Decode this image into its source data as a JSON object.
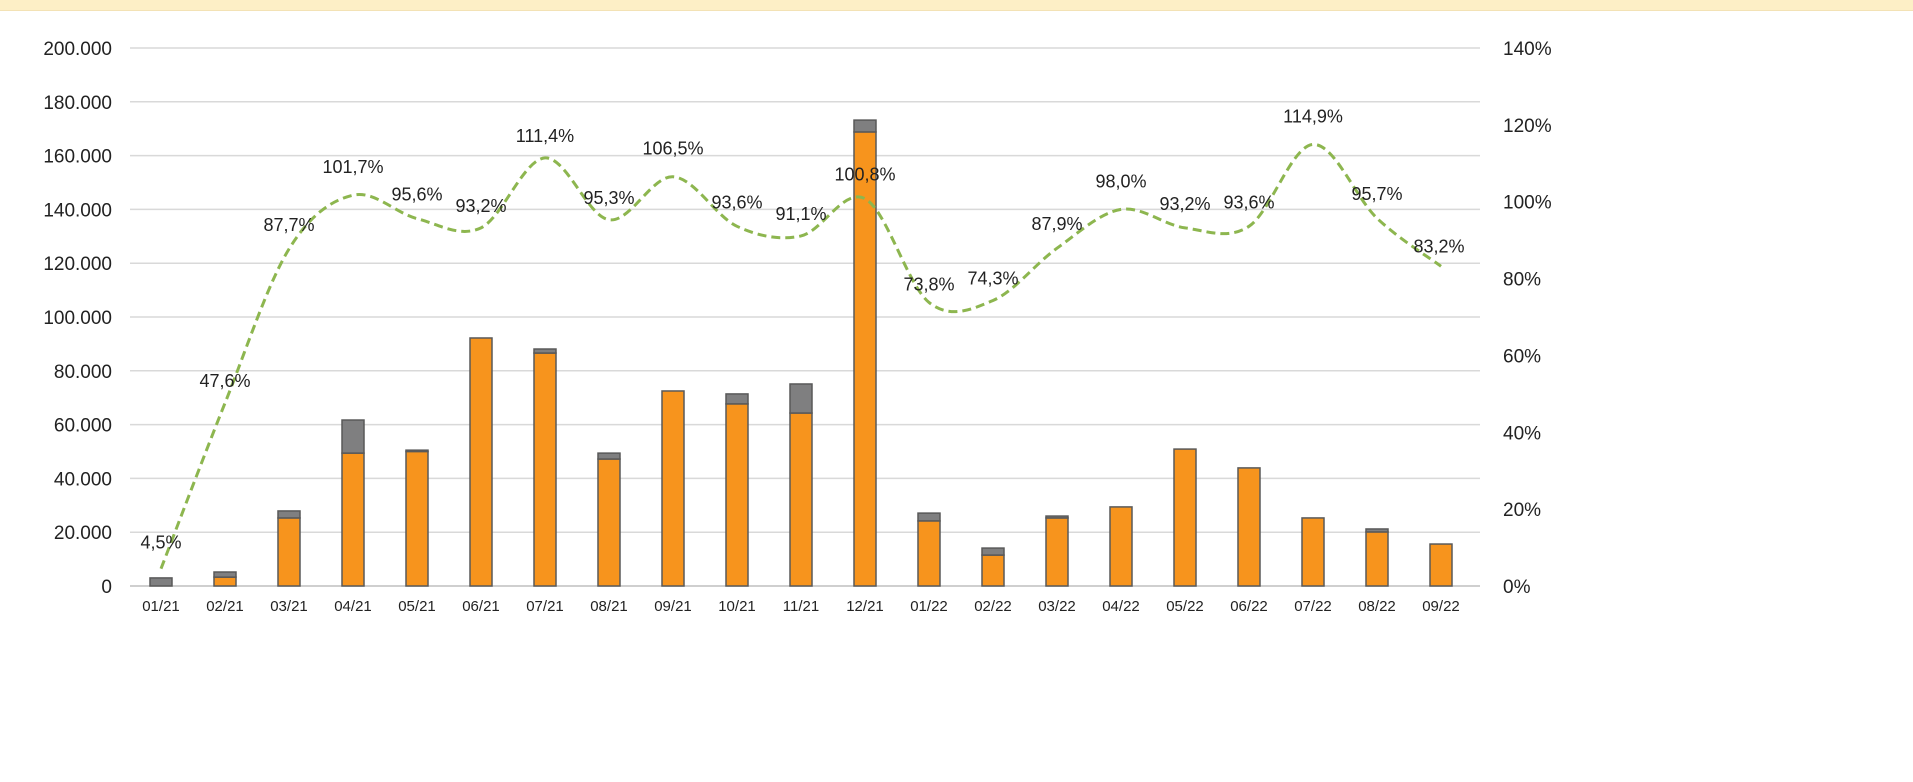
{
  "chart_data": {
    "type": "bar",
    "title": "",
    "categories": [
      "01/21",
      "02/21",
      "03/21",
      "04/21",
      "05/21",
      "06/21",
      "07/21",
      "08/21",
      "09/21",
      "10/21",
      "11/21",
      "12/21",
      "01/22",
      "02/22",
      "03/22",
      "04/22",
      "05/22",
      "06/22",
      "07/22",
      "08/22",
      "09/22"
    ],
    "series": [
      {
        "name": "orange",
        "type": "bar",
        "axis": "left",
        "color": "#f7941d",
        "values": [
          0,
          3300,
          25300,
          49400,
          50000,
          92200,
          86600,
          47200,
          72500,
          67700,
          64300,
          168800,
          24200,
          11500,
          25300,
          29400,
          50900,
          43900,
          25300,
          20100,
          15600
        ]
      },
      {
        "name": "gray",
        "type": "bar",
        "axis": "left",
        "color": "#7f7f80",
        "values": [
          3000,
          1900,
          2600,
          12300,
          500,
          0,
          1500,
          2200,
          0,
          3700,
          10800,
          4400,
          2900,
          2600,
          700,
          0,
          0,
          0,
          0,
          1100,
          0
        ]
      },
      {
        "name": "ratio",
        "type": "line",
        "axis": "right",
        "color": "#8db64f",
        "values": [
          4.5,
          47.6,
          87.7,
          101.7,
          95.6,
          93.2,
          111.4,
          95.3,
          106.5,
          93.6,
          91.1,
          100.8,
          73.8,
          74.3,
          87.9,
          98.0,
          93.2,
          93.6,
          114.9,
          95.7,
          83.2
        ],
        "labels": [
          "4,5%",
          "47,6%",
          "87,7%",
          "101,7%",
          "95,6%",
          "93,2%",
          "111,4%",
          "95,3%",
          "106,5%",
          "93,6%",
          "91,1%",
          "100,8%",
          "73,8%",
          "74,3%",
          "87,9%",
          "98,0%",
          "93,2%",
          "93,6%",
          "114,9%",
          "95,7%",
          "83,2%"
        ]
      }
    ],
    "ylim": [
      0,
      200000
    ],
    "y2lim": [
      0,
      140
    ],
    "yticks": [
      "0",
      "20.000",
      "40.000",
      "60.000",
      "80.000",
      "100.000",
      "120.000",
      "140.000",
      "160.000",
      "180.000",
      "200.000"
    ],
    "y2ticks": [
      "0%",
      "20%",
      "40%",
      "60%",
      "80%",
      "100%",
      "120%",
      "140%"
    ],
    "grid": true,
    "xlabel": "",
    "ylabel": ""
  }
}
